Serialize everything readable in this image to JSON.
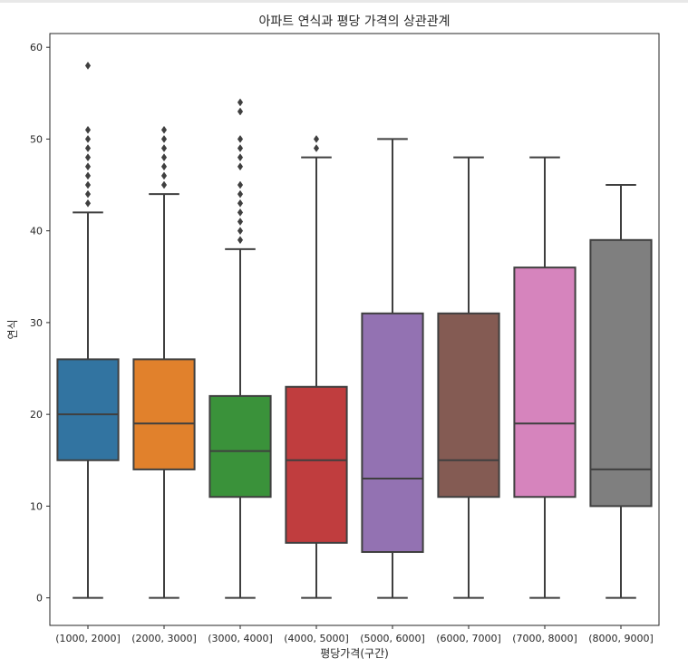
{
  "chart_data": {
    "type": "box",
    "title": "아파트 연식과 평당 가격의 상관관계",
    "xlabel": "평당가격(구간)",
    "ylabel": "연식",
    "ylim": [
      -3,
      61.5
    ],
    "yticks": [
      0,
      10,
      20,
      30,
      40,
      50,
      60
    ],
    "categories": [
      "(1000, 2000]",
      "(2000, 3000]",
      "(3000, 4000]",
      "(4000, 5000]",
      "(5000, 6000]",
      "(6000, 7000]",
      "(7000, 8000]",
      "(8000, 9000]"
    ],
    "colors": [
      "#3274a1",
      "#e1812c",
      "#3a923a",
      "#c03d3e",
      "#9372b2",
      "#845b53",
      "#d684bd",
      "#7f7f7f"
    ],
    "boxes": [
      {
        "min": 0,
        "q1": 15,
        "median": 20,
        "q3": 26,
        "max": 42,
        "outliers": [
          43,
          44,
          45,
          46,
          47,
          48,
          49,
          50,
          51,
          58
        ]
      },
      {
        "min": 0,
        "q1": 14,
        "median": 19,
        "q3": 26,
        "max": 44,
        "outliers": [
          45,
          46,
          47,
          48,
          49,
          50,
          51
        ]
      },
      {
        "min": 0,
        "q1": 11,
        "median": 16,
        "q3": 22,
        "max": 38,
        "outliers": [
          39,
          40,
          41,
          42,
          43,
          44,
          45,
          47,
          48,
          49,
          50,
          53,
          54
        ]
      },
      {
        "min": 0,
        "q1": 6,
        "median": 15,
        "q3": 23,
        "max": 48,
        "outliers": [
          49,
          50
        ]
      },
      {
        "min": 0,
        "q1": 5,
        "median": 13,
        "q3": 31,
        "max": 50,
        "outliers": []
      },
      {
        "min": 0,
        "q1": 11,
        "median": 15,
        "q3": 31,
        "max": 48,
        "outliers": []
      },
      {
        "min": 0,
        "q1": 11,
        "median": 19,
        "q3": 36,
        "max": 48,
        "outliers": []
      },
      {
        "min": 0,
        "q1": 10,
        "median": 14,
        "q3": 39,
        "max": 45,
        "outliers": []
      }
    ]
  }
}
